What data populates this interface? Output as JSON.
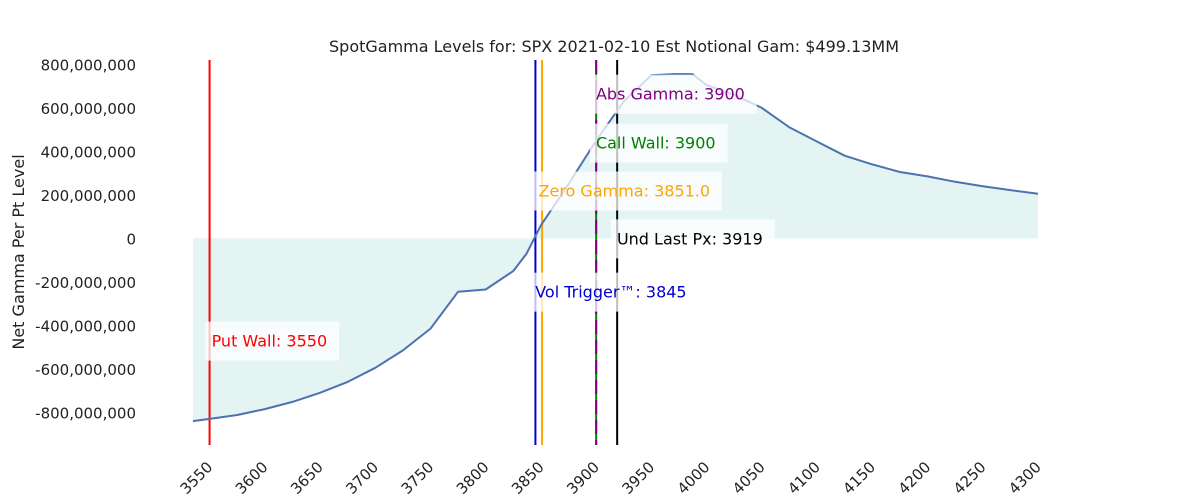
{
  "chart_data": {
    "type": "line",
    "title": "SpotGamma Levels for: SPX  2021-02-10 Est Notional Gam: $499.13MM",
    "xlabel": "",
    "ylabel": "Net Gamma Per Pt Level",
    "xlim": [
      3535,
      4300
    ],
    "ylim": [
      -950000000,
      820000000
    ],
    "x_ticks": [
      3550,
      3600,
      3650,
      3700,
      3750,
      3800,
      3850,
      3900,
      3950,
      4000,
      4050,
      4100,
      4150,
      4200,
      4250,
      4300
    ],
    "y_ticks": [
      {
        "value": 800000000,
        "label": "800,000,000"
      },
      {
        "value": 600000000,
        "label": "600,000,000"
      },
      {
        "value": 400000000,
        "label": "400,000,000"
      },
      {
        "value": 200000000,
        "label": "200,000,000"
      },
      {
        "value": 0,
        "label": "0"
      },
      {
        "value": -200000000,
        "label": "-200,000,000"
      },
      {
        "value": -400000000,
        "label": "-400,000,000"
      },
      {
        "value": -600000000,
        "label": "-600,000,000"
      },
      {
        "value": -800000000,
        "label": "-800,000,000"
      }
    ],
    "grid": false,
    "series": [
      {
        "line_color": "#4c72b0",
        "fill_color": "#e3f4f2",
        "x": [
          3535,
          3550,
          3575,
          3600,
          3625,
          3650,
          3675,
          3700,
          3725,
          3750,
          3775,
          3800,
          3825,
          3837,
          3850,
          3875,
          3900,
          3925,
          3950,
          3970,
          3987,
          4000,
          4025,
          4050,
          4075,
          4100,
          4125,
          4150,
          4175,
          4200,
          4225,
          4250,
          4275,
          4300
        ],
        "y": [
          -840000000,
          -830000000,
          -812000000,
          -785000000,
          -752000000,
          -710000000,
          -660000000,
          -595000000,
          -515000000,
          -415000000,
          -245000000,
          -235000000,
          -150000000,
          -70000000,
          60000000,
          250000000,
          450000000,
          630000000,
          750000000,
          755000000,
          755000000,
          705000000,
          660000000,
          600000000,
          510000000,
          445000000,
          380000000,
          340000000,
          305000000,
          285000000,
          260000000,
          240000000,
          222000000,
          205000000
        ]
      }
    ],
    "level_lines": [
      {
        "label": "Put Wall: 3550",
        "x": 3550,
        "color": "#ff0000",
        "style": "solid",
        "label_y": -470000000,
        "label_x": 3550
      },
      {
        "label": "Vol Trigger™: 3845",
        "x": 3845,
        "color": "#0000cc",
        "style": "solid",
        "label_y": -245000000,
        "label_x": 3843
      },
      {
        "label": "Zero Gamma: 3851.0",
        "x": 3851,
        "color": "#ffa500",
        "style": "solid",
        "label_y": 220000000,
        "label_x": 3846
      },
      {
        "label": "Call Wall: 3900",
        "x": 3900,
        "color": "#008000",
        "style": "solid",
        "label_y": 440000000,
        "label_x": 3898
      },
      {
        "label": "Abs Gamma: 3900",
        "x": 3900,
        "color": "#800080",
        "style": "dashed",
        "label_y": 665000000,
        "label_x": 3898
      },
      {
        "label": "Und Last Px: 3919",
        "x": 3919,
        "color": "#000000",
        "style": "solid",
        "label_y": 0,
        "label_x": 3917
      }
    ]
  }
}
